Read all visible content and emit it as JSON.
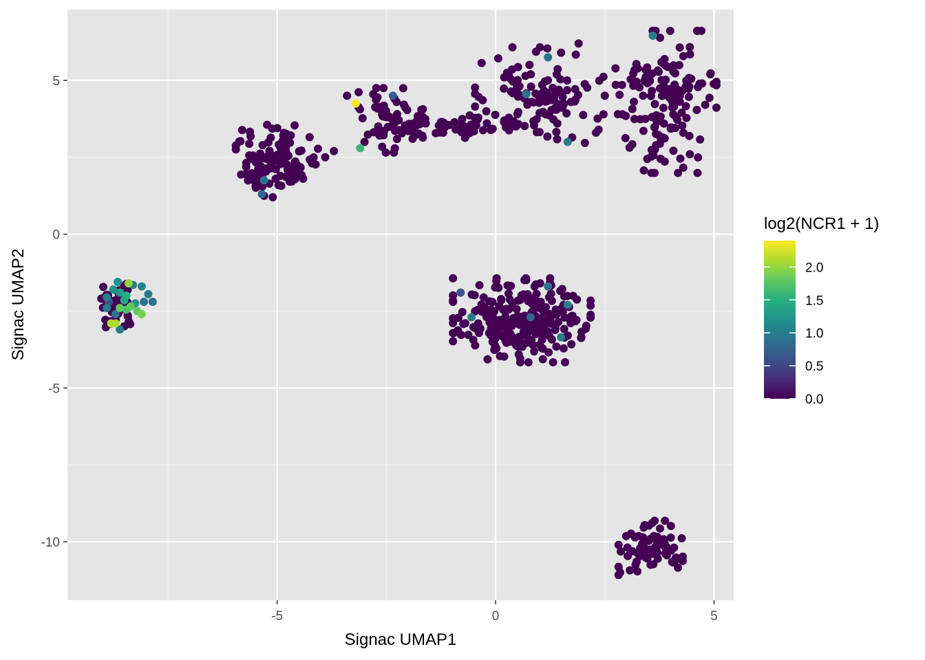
{
  "chart_data": {
    "type": "scatter",
    "title": "",
    "xlabel": "Signac UMAP1",
    "ylabel": "Signac UMAP2",
    "xlim": [
      -9.8,
      5.45
    ],
    "ylim": [
      -11.9,
      7.3
    ],
    "x_ticks": [
      -5,
      0,
      5
    ],
    "x_tick_labels": [
      "-5",
      "0",
      "5"
    ],
    "y_ticks": [
      -10,
      -5,
      0,
      5
    ],
    "y_tick_labels": [
      "-10",
      "-5",
      "0",
      "5"
    ],
    "grid": true,
    "background": "#e5e5e5",
    "legend": {
      "title": "log2(NCR1 + 1)",
      "placement": "right",
      "type": "colorbar",
      "colormap": "viridis",
      "range": [
        0,
        2.4
      ],
      "ticks": [
        0,
        0.5,
        1,
        1.5,
        2
      ],
      "tick_labels": [
        "0.0",
        "0.5",
        "1.0",
        "1.5",
        "2.0"
      ]
    },
    "clusters": [
      {
        "name": "",
        "center": [
          -3.6,
          3.4
        ],
        "spread": [
          0.5,
          0.45
        ],
        "count": 0
      },
      {
        "name": "",
        "center": [
          -5.0,
          2.4
        ],
        "spread": [
          0.45,
          0.55
        ],
        "count": 120
      },
      {
        "name": "",
        "center": [
          -2.4,
          3.7
        ],
        "spread": [
          0.35,
          0.5
        ],
        "count": 70
      },
      {
        "name": "",
        "center": [
          -0.6,
          3.5
        ],
        "spread": [
          0.7,
          0.2
        ],
        "count": 40
      },
      {
        "name": "",
        "center": [
          1.0,
          4.5
        ],
        "spread": [
          0.7,
          0.75
        ],
        "count": 110
      },
      {
        "name": "",
        "center": [
          3.9,
          4.3
        ],
        "spread": [
          0.55,
          1.1
        ],
        "count": 150
      },
      {
        "name": "",
        "center": [
          0.6,
          -2.8
        ],
        "spread": [
          0.75,
          0.65
        ],
        "count": 260
      },
      {
        "name": "",
        "center": [
          -8.7,
          -2.3
        ],
        "spread": [
          0.22,
          0.4
        ],
        "count": 45
      },
      {
        "name": "",
        "center": [
          3.55,
          -10.2
        ],
        "spread": [
          0.35,
          0.42
        ],
        "count": 80
      }
    ],
    "highlight_points": [
      {
        "x": -3.2,
        "y": 4.25,
        "value": 2.4
      },
      {
        "x": -3.1,
        "y": 2.8,
        "value": 1.6
      },
      {
        "x": 3.6,
        "y": 6.45,
        "value": 1.0
      },
      {
        "x": 1.2,
        "y": 5.75,
        "value": 0.9
      },
      {
        "x": 0.7,
        "y": 4.55,
        "value": 0.9
      },
      {
        "x": 1.65,
        "y": 3.0,
        "value": 1.0
      },
      {
        "x": -5.3,
        "y": 1.75,
        "value": 0.9
      },
      {
        "x": -5.35,
        "y": 1.3,
        "value": 0.8
      },
      {
        "x": -2.35,
        "y": 4.5,
        "value": 0.7
      },
      {
        "x": 1.2,
        "y": -1.7,
        "value": 0.9
      },
      {
        "x": 1.65,
        "y": -2.3,
        "value": 1.0
      },
      {
        "x": -0.55,
        "y": -2.7,
        "value": 1.0
      },
      {
        "x": 0.8,
        "y": -2.7,
        "value": 0.8
      },
      {
        "x": 1.5,
        "y": -3.35,
        "value": 1.0
      },
      {
        "x": -0.8,
        "y": -1.9,
        "value": 0.6
      },
      {
        "x": -8.65,
        "y": -1.55,
        "value": 1.2
      },
      {
        "x": -8.4,
        "y": -1.6,
        "value": 2.0
      },
      {
        "x": -8.3,
        "y": -1.65,
        "value": 1.0
      },
      {
        "x": -8.1,
        "y": -1.7,
        "value": 1.1
      },
      {
        "x": -8.9,
        "y": -2.05,
        "value": 1.0
      },
      {
        "x": -8.6,
        "y": -1.9,
        "value": 1.3
      },
      {
        "x": -8.45,
        "y": -2.0,
        "value": 1.5
      },
      {
        "x": -8.25,
        "y": -2.25,
        "value": 1.2
      },
      {
        "x": -8.05,
        "y": -2.2,
        "value": 0.9
      },
      {
        "x": -7.85,
        "y": -2.2,
        "value": 0.9
      },
      {
        "x": -8.6,
        "y": -2.4,
        "value": 1.8
      },
      {
        "x": -8.45,
        "y": -2.45,
        "value": 1.7
      },
      {
        "x": -8.35,
        "y": -2.35,
        "value": 1.8
      },
      {
        "x": -8.2,
        "y": -2.5,
        "value": 1.8
      },
      {
        "x": -8.1,
        "y": -2.6,
        "value": 1.9
      },
      {
        "x": -8.7,
        "y": -2.6,
        "value": 0.9
      },
      {
        "x": -8.9,
        "y": -2.4,
        "value": 1.0
      },
      {
        "x": -8.8,
        "y": -2.9,
        "value": 2.1
      },
      {
        "x": -8.7,
        "y": -2.9,
        "value": 2.1
      },
      {
        "x": -8.6,
        "y": -3.1,
        "value": 1.0
      },
      {
        "x": -8.85,
        "y": -2.2,
        "value": 0.6
      },
      {
        "x": -7.95,
        "y": -1.95,
        "value": 1.0
      },
      {
        "x": -8.5,
        "y": -2.15,
        "value": 1.4
      },
      {
        "x": -8.75,
        "y": -1.8,
        "value": 1.2
      }
    ]
  }
}
